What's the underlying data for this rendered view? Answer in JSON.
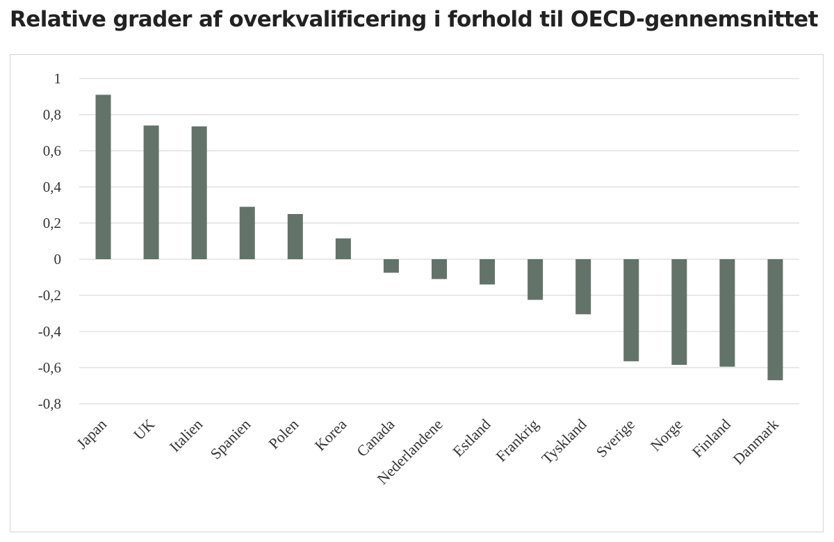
{
  "chart_data": {
    "type": "bar",
    "title": "Relative grader af overkvalificering i forhold til OECD-gennemsnittet",
    "categories": [
      "Japan",
      "UK",
      "Italien",
      "Spanien",
      "Polen",
      "Korea",
      "Canada",
      "Nederlandene",
      "Estland",
      "Frankrig",
      "Tyskland",
      "Sverige",
      "Norge",
      "Finland",
      "Danmark"
    ],
    "values": [
      0.91,
      0.74,
      0.735,
      0.29,
      0.25,
      0.115,
      -0.075,
      -0.11,
      -0.14,
      -0.225,
      -0.305,
      -0.565,
      -0.585,
      -0.595,
      -0.67
    ],
    "ylim": [
      -0.8,
      1
    ],
    "yticks": [
      1,
      0.8,
      0.6,
      0.4,
      0.2,
      0,
      -0.2,
      -0.4,
      -0.6,
      -0.8
    ],
    "ytick_labels": [
      "1",
      "0,8",
      "0,6",
      "0,4",
      "0,2",
      "0",
      "-0,2",
      "-0,4",
      "-0,6",
      "-0,8"
    ],
    "xlabel": "",
    "ylabel": "",
    "grid": true,
    "legend": "none",
    "bar_color": "#627369",
    "grid_color": "#d9d9d9"
  }
}
